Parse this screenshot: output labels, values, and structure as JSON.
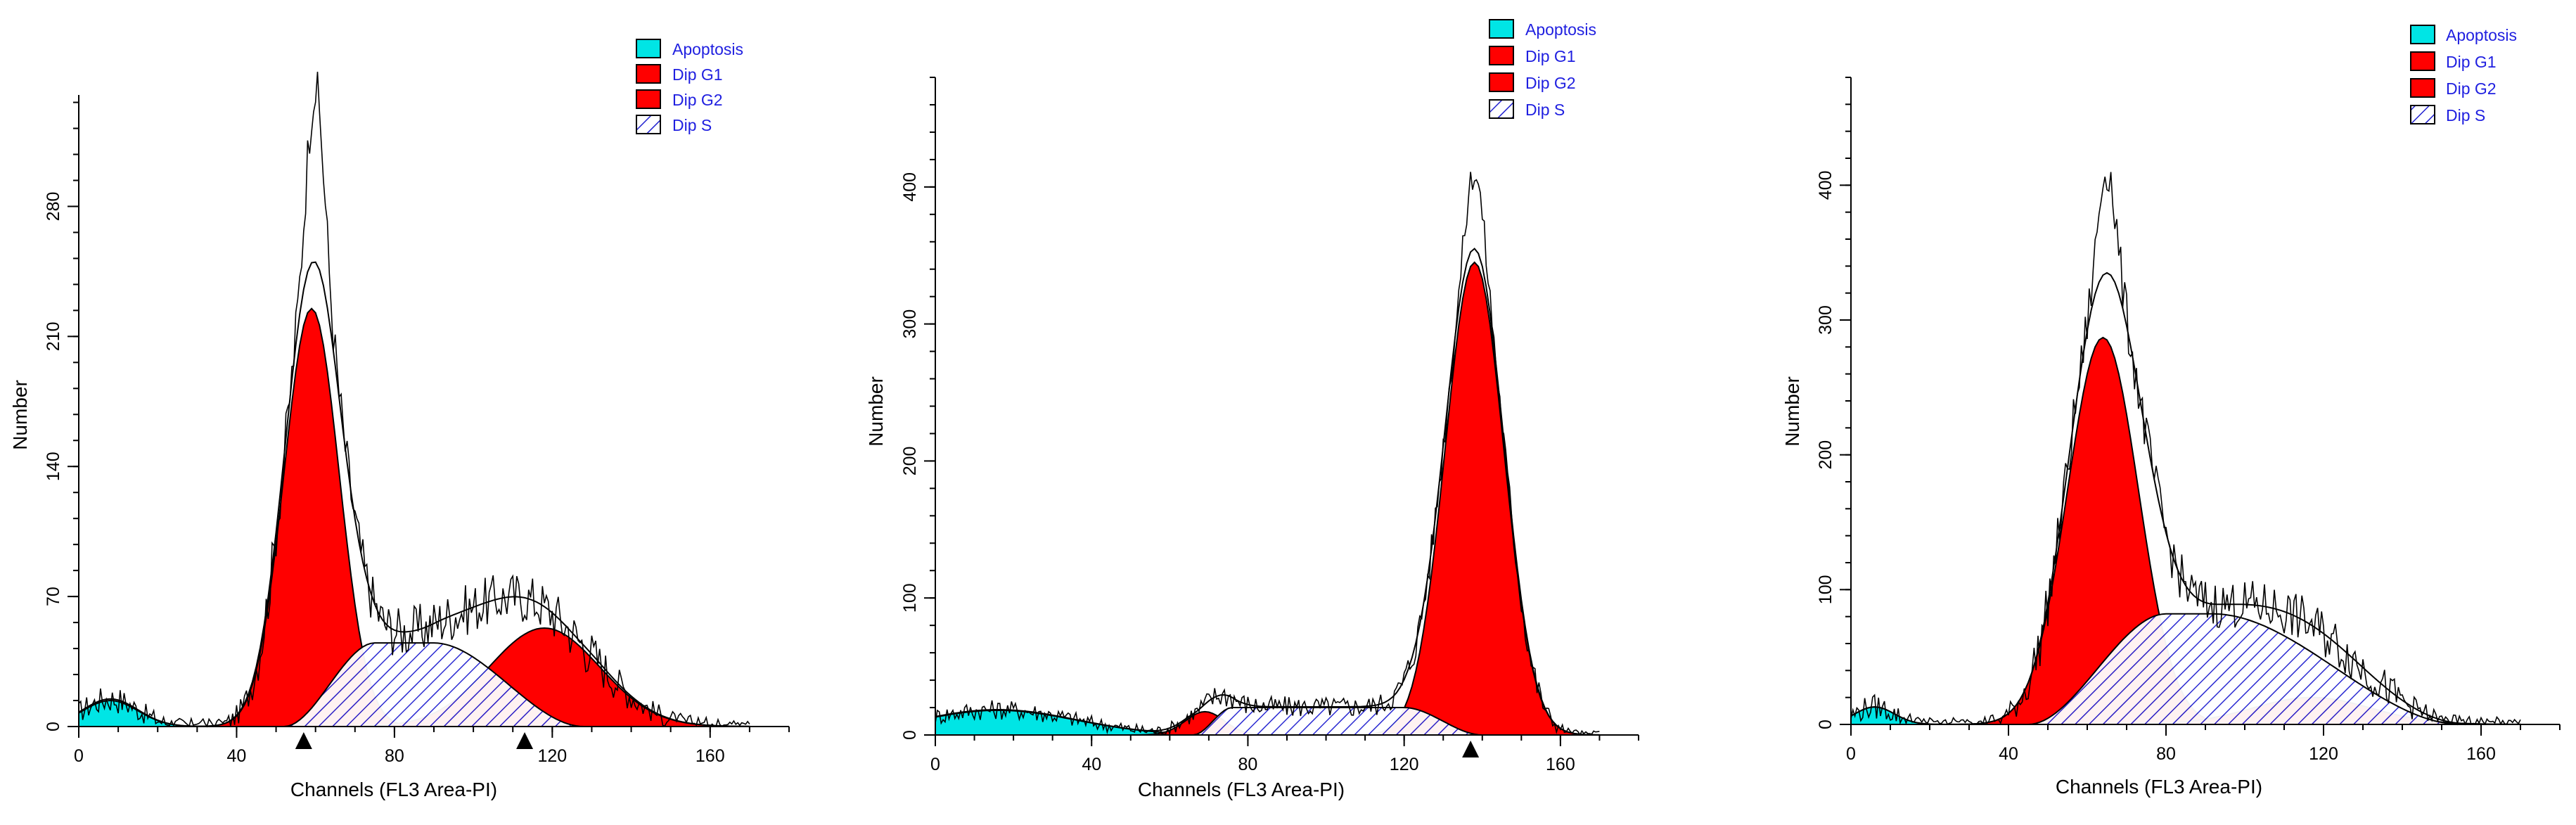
{
  "colors": {
    "apoptosis": "#00e5e5",
    "dip_g1": "#ff0000",
    "dip_g2": "#ff0000",
    "dip_s_hatch": "#2020d0",
    "outline": "#000000",
    "legend_text": "#1f1fe0"
  },
  "legend_labels": [
    "Apoptosis",
    "Dip G1",
    "Dip G2",
    "Dip S"
  ],
  "chart_data": [
    {
      "type": "area",
      "title": "",
      "xlabel": "Channels (FL3 Area-PI)",
      "ylabel": "Number",
      "xlim": [
        0,
        180
      ],
      "ylim": [
        0,
        340
      ],
      "xticks": [
        0,
        40,
        80,
        120,
        160
      ],
      "yticks": [
        0,
        70,
        140,
        210,
        280
      ],
      "markers_x": [
        57,
        113
      ],
      "series": [
        {
          "name": "Apoptosis",
          "kind": "gaussian",
          "mu": 8,
          "sigma": 7,
          "amp": 14
        },
        {
          "name": "Dip G1",
          "kind": "gaussian",
          "mu": 59,
          "sigma": 7,
          "amp": 225
        },
        {
          "name": "Dip G2",
          "kind": "gaussian",
          "mu": 118,
          "sigma": 14,
          "amp": 53
        },
        {
          "name": "Dip S",
          "kind": "trapezoid",
          "x0": 52,
          "x1": 75,
          "x2": 90,
          "x3": 128,
          "amp": 45
        }
      ],
      "fit_peak": 250,
      "raw_peak": 343,
      "noise_amp": 14
    },
    {
      "type": "area",
      "title": "",
      "xlabel": "Channels (FL3 Area-PI)",
      "ylabel": "Number",
      "xlim": [
        0,
        180
      ],
      "ylim": [
        0,
        480
      ],
      "xticks": [
        0,
        40,
        80,
        120,
        160
      ],
      "yticks": [
        0,
        100,
        200,
        300,
        400
      ],
      "markers_x": [
        137
      ],
      "series": [
        {
          "name": "Apoptosis",
          "kind": "gaussian",
          "mu": 16,
          "sigma": 20,
          "amp": 18
        },
        {
          "name": "Dip G1",
          "kind": "gaussian",
          "mu": 69,
          "sigma": 5,
          "amp": 17
        },
        {
          "name": "Dip G2",
          "kind": "gaussian",
          "mu": 138,
          "sigma": 7.5,
          "amp": 345
        },
        {
          "name": "Dip S",
          "kind": "trapezoid",
          "x0": 66,
          "x1": 76,
          "x2": 120,
          "x3": 140,
          "amp": 20
        }
      ],
      "fit_peak": 355,
      "raw_peak": 411,
      "noise_amp": 12
    },
    {
      "type": "area",
      "title": "",
      "xlabel": "Channels (FL3 Area-PI)",
      "ylabel": "Number",
      "xlim": [
        0,
        180
      ],
      "ylim": [
        0,
        480
      ],
      "xticks": [
        0,
        40,
        80,
        120,
        160
      ],
      "yticks": [
        0,
        100,
        200,
        300,
        400
      ],
      "markers_x": [],
      "series": [
        {
          "name": "Apoptosis",
          "kind": "gaussian",
          "mu": 6,
          "sigma": 5,
          "amp": 13
        },
        {
          "name": "Dip G1",
          "kind": "gaussian",
          "mu": 64,
          "sigma": 9,
          "amp": 287
        },
        {
          "name": "Dip G2",
          "kind": "gaussian",
          "mu": 117,
          "sigma": 15,
          "amp": 20
        },
        {
          "name": "Dip S",
          "kind": "trapezoid",
          "x0": 45,
          "x1": 80,
          "x2": 92,
          "x3": 155,
          "amp": 82
        }
      ],
      "fit_peak": 335,
      "raw_peak": 413,
      "noise_amp": 18
    }
  ]
}
